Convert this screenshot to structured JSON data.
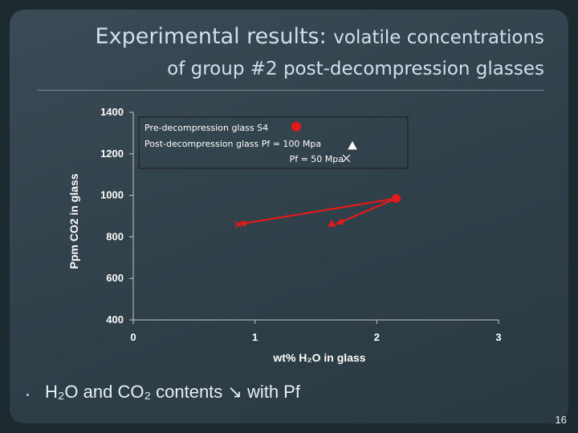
{
  "slide": {
    "title_line1_main": "Experimental results: ",
    "title_line1_small": "volatile concentrations",
    "title_line2": "of group #2 post-decompression glasses",
    "bullet_text": "H₂O and CO₂ contents ↘ with Pf",
    "page_number": "16"
  },
  "chart_data": {
    "type": "line",
    "xlabel": "wt% H₂O in glass",
    "ylabel": "Ppm CO2 in glass",
    "xlim": [
      0,
      3
    ],
    "ylim": [
      400,
      1400
    ],
    "x_ticks": [
      0,
      1,
      2,
      3
    ],
    "y_ticks": [
      400,
      600,
      800,
      1000,
      1200,
      1400
    ],
    "grid": false,
    "legend": {
      "placement": "top-left",
      "entries": [
        "Pre-decompression glass S4",
        "Post-decompression glass Pf = 100 Mpa",
        "Pf = 50 Mpa"
      ]
    },
    "points": [
      {
        "marker": "circle",
        "x": 2.16,
        "y": 985
      },
      {
        "marker": "triangle",
        "x": 1.63,
        "y": 860
      },
      {
        "marker": "x",
        "x": 0.86,
        "y": 860
      }
    ],
    "arrows": [
      {
        "from": [
          2.16,
          985
        ],
        "to": [
          1.66,
          860
        ]
      },
      {
        "from": [
          2.16,
          985
        ],
        "to": [
          0.86,
          860
        ]
      }
    ],
    "colors": {
      "series": "#e31a1c",
      "axis": "#c8c8c8"
    }
  }
}
